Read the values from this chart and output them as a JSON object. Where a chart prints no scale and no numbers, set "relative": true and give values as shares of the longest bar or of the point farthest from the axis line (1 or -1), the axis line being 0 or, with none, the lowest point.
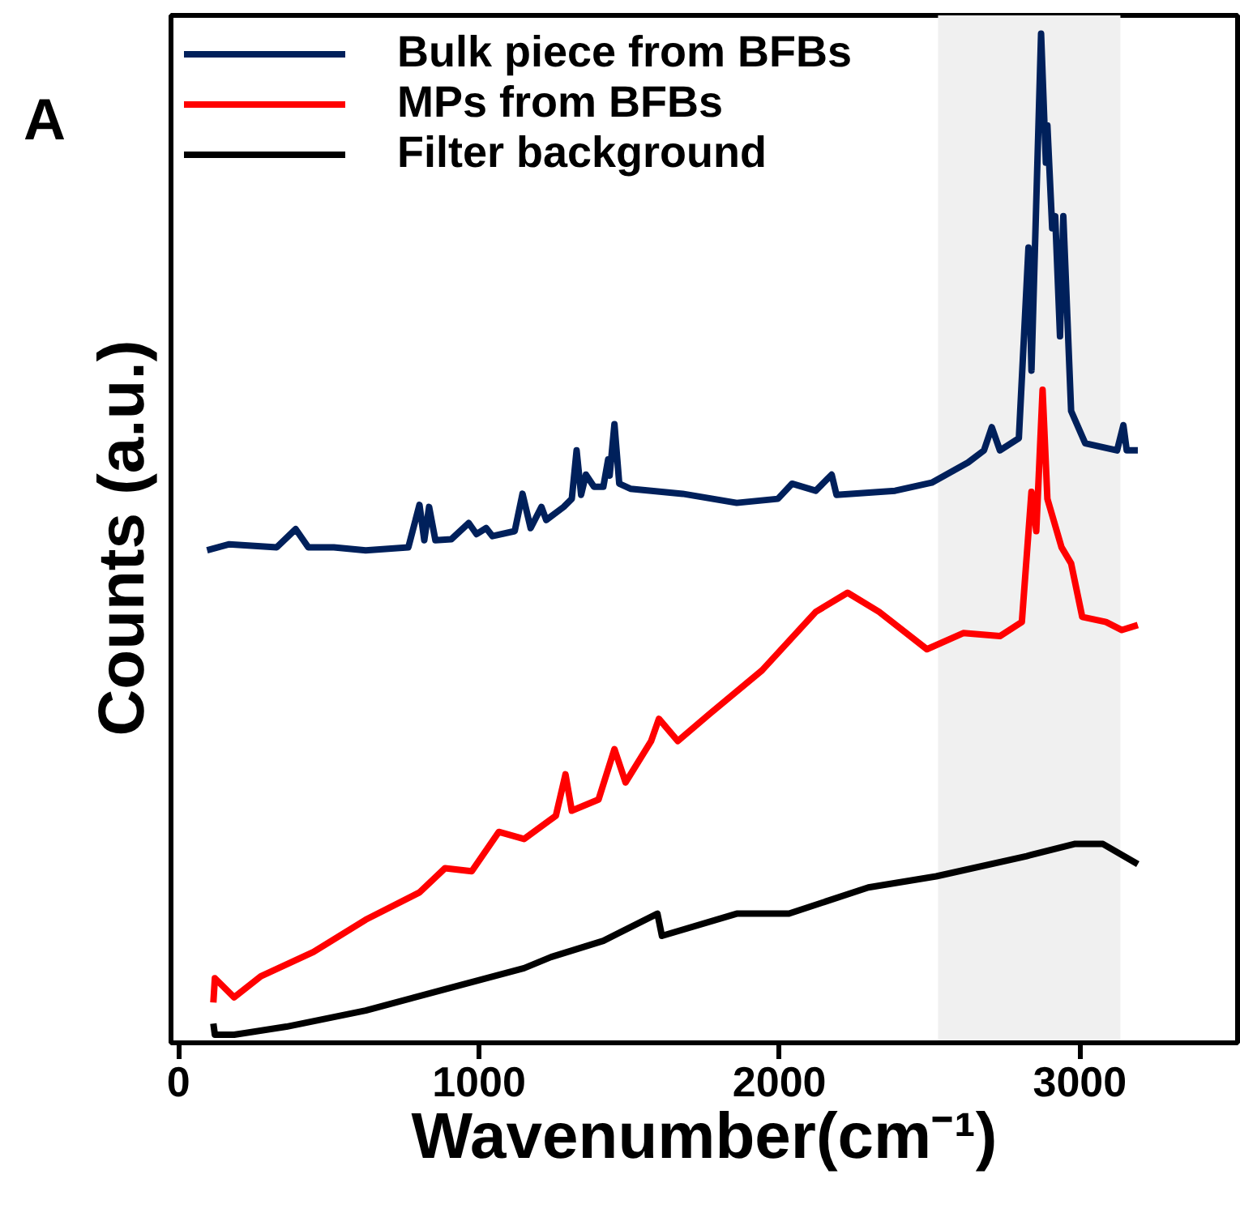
{
  "chart_data": {
    "type": "line",
    "xlabel": "Wavenumber(cm⁻¹)",
    "ylabel": "Counts  (a.u.)",
    "annotations": [
      "A"
    ],
    "relative": true,
    "xlim": [
      -25,
      3525
    ],
    "xticks": [
      0,
      1000,
      2000,
      3000
    ],
    "grid": false,
    "legend": "top left",
    "line_style": "solid",
    "marker": "none",
    "bands": [
      {
        "axis": "x",
        "from": 2528,
        "to": 3135,
        "color": "#f0f0f0"
      }
    ],
    "series": [
      {
        "name": "Bulk piece from BFBs",
        "color": "#00205b",
        "x": [
          95,
          169,
          327,
          390,
          432,
          517,
          623,
          765,
          802,
          818,
          834,
          855,
          908,
          966,
          992,
          1024,
          1045,
          1119,
          1145,
          1172,
          1208,
          1224,
          1282,
          1309,
          1325,
          1340,
          1356,
          1383,
          1414,
          1430,
          1435,
          1451,
          1467,
          1504,
          1678,
          1858,
          1995,
          2042,
          2121,
          2174,
          2190,
          2385,
          2507,
          2628,
          2681,
          2707,
          2734,
          2797,
          2829,
          2839,
          2871,
          2887,
          2892,
          2908,
          2918,
          2934,
          2945,
          2971,
          3018,
          3124,
          3145,
          3156,
          3193
        ],
        "values": [
          0.488,
          0.494,
          0.491,
          0.509,
          0.491,
          0.491,
          0.488,
          0.491,
          0.533,
          0.498,
          0.531,
          0.498,
          0.499,
          0.515,
          0.504,
          0.51,
          0.502,
          0.507,
          0.544,
          0.51,
          0.531,
          0.518,
          0.531,
          0.539,
          0.587,
          0.543,
          0.563,
          0.551,
          0.551,
          0.578,
          0.562,
          0.613,
          0.554,
          0.549,
          0.544,
          0.535,
          0.539,
          0.554,
          0.547,
          0.563,
          0.543,
          0.547,
          0.555,
          0.575,
          0.587,
          0.61,
          0.587,
          0.599,
          0.788,
          0.666,
          1.0,
          0.872,
          0.909,
          0.807,
          0.819,
          0.7,
          0.819,
          0.626,
          0.594,
          0.587,
          0.612,
          0.587,
          0.587
        ]
      },
      {
        "name": "MPs from BFBs",
        "color": "#ff0000",
        "x": [
          116,
          121,
          185,
          274,
          449,
          623,
          802,
          887,
          976,
          1066,
          1150,
          1256,
          1288,
          1309,
          1398,
          1451,
          1488,
          1573,
          1599,
          1662,
          1768,
          1942,
          2121,
          2227,
          2332,
          2491,
          2612,
          2734,
          2807,
          2839,
          2855,
          2876,
          2892,
          2939,
          2971,
          3008,
          3087,
          3140,
          3193
        ],
        "values": [
          0.04,
          0.064,
          0.045,
          0.066,
          0.09,
          0.122,
          0.149,
          0.173,
          0.17,
          0.209,
          0.202,
          0.225,
          0.266,
          0.23,
          0.241,
          0.291,
          0.258,
          0.299,
          0.321,
          0.299,
          0.326,
          0.369,
          0.427,
          0.446,
          0.427,
          0.39,
          0.406,
          0.403,
          0.417,
          0.546,
          0.507,
          0.647,
          0.539,
          0.491,
          0.475,
          0.422,
          0.417,
          0.409,
          0.414
        ]
      },
      {
        "name": "Filter background",
        "color": "#000000",
        "x": [
          116,
          121,
          185,
          359,
          623,
          887,
          1150,
          1240,
          1414,
          1594,
          1609,
          1858,
          2032,
          2296,
          2522,
          2823,
          2982,
          3077,
          3193
        ],
        "values": [
          0.019,
          0.008,
          0.008,
          0.016,
          0.032,
          0.053,
          0.074,
          0.085,
          0.101,
          0.128,
          0.106,
          0.128,
          0.128,
          0.154,
          0.165,
          0.185,
          0.197,
          0.197,
          0.177
        ]
      }
    ]
  }
}
